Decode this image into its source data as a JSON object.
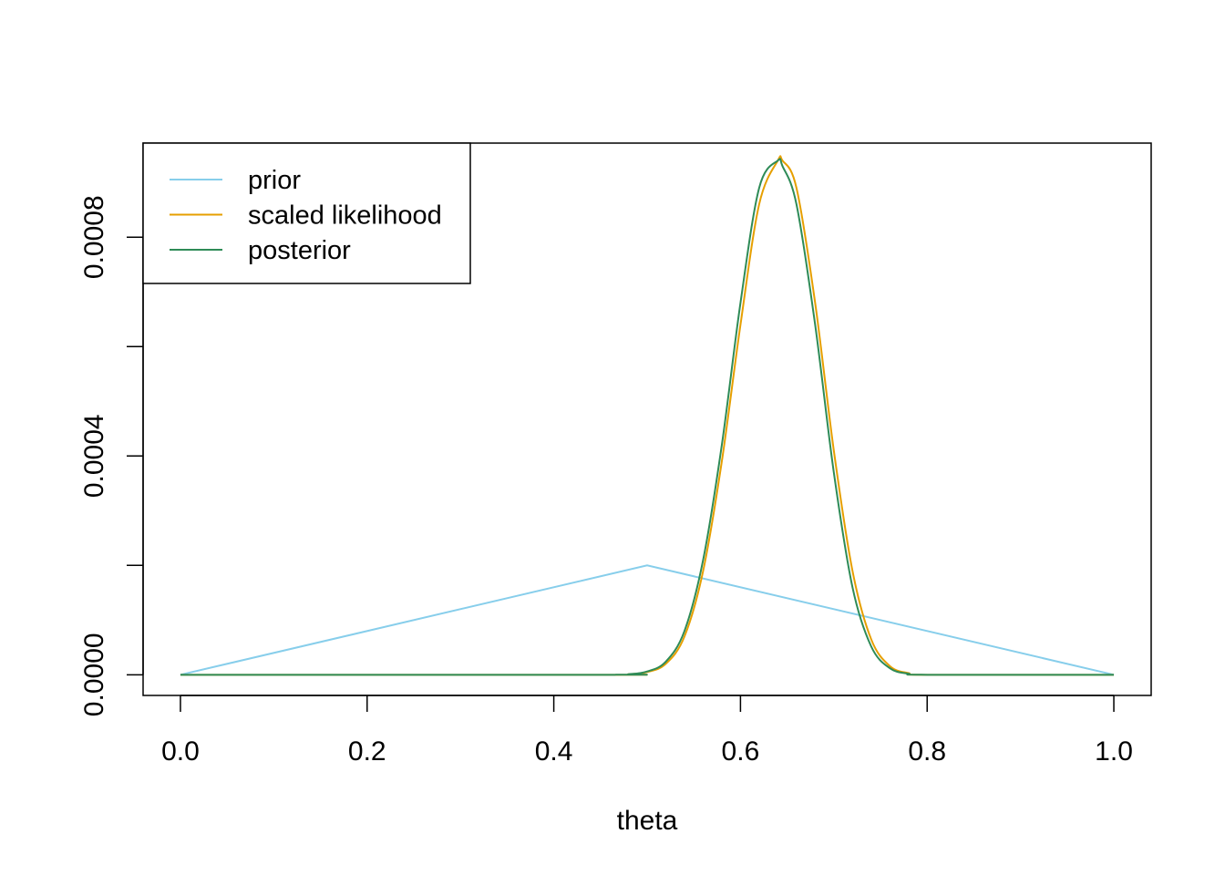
{
  "chart_data": {
    "type": "line",
    "xlabel": "theta",
    "ylabel": "",
    "xlim": [
      -0.04,
      1.04
    ],
    "ylim": [
      -3.78e-05,
      0.000972
    ],
    "x_ticks": [
      {
        "value": 0.0,
        "label": "0.0"
      },
      {
        "value": 0.2,
        "label": "0.2"
      },
      {
        "value": 0.4,
        "label": "0.4"
      },
      {
        "value": 0.6,
        "label": "0.6"
      },
      {
        "value": 0.8,
        "label": "0.8"
      },
      {
        "value": 1.0,
        "label": "1.0"
      }
    ],
    "y_ticks": [
      {
        "value": 0.0,
        "label": "0.0000"
      },
      {
        "value": 0.0002,
        "label": ""
      },
      {
        "value": 0.0004,
        "label": "0.0004"
      },
      {
        "value": 0.0006,
        "label": ""
      },
      {
        "value": 0.0008,
        "label": "0.0008"
      }
    ],
    "grid": false,
    "legend_position": "top-left",
    "series": [
      {
        "name": "prior",
        "color": "#87CEEB",
        "x": [
          0.0,
          0.5,
          1.0
        ],
        "y": [
          0.0,
          0.0002,
          0.0
        ]
      },
      {
        "name": "scaled likelihood",
        "color": "#E69F00",
        "x": [
          0.0,
          0.46,
          0.48,
          0.5,
          0.52,
          0.54,
          0.56,
          0.58,
          0.6,
          0.62,
          0.64,
          0.645,
          0.66,
          0.68,
          0.7,
          0.72,
          0.74,
          0.76,
          0.78,
          0.8,
          1.0
        ],
        "y": [
          0.0,
          0.0,
          1e-06,
          5e-06,
          2e-05,
          7e-05,
          0.00019,
          0.00039,
          0.00064,
          0.00086,
          0.00094,
          0.00094,
          0.00089,
          0.00068,
          0.00041,
          0.00019,
          6.5e-05,
          1.6e-05,
          3e-06,
          0.0,
          0.0
        ]
      },
      {
        "name": "posterior",
        "color": "#2E8B57",
        "x": [
          0.0,
          0.46,
          0.48,
          0.5,
          0.52,
          0.54,
          0.56,
          0.58,
          0.6,
          0.62,
          0.64,
          0.645,
          0.66,
          0.68,
          0.7,
          0.72,
          0.74,
          0.76,
          0.78,
          0.8,
          1.0
        ],
        "y": [
          0.0,
          0.0,
          1e-06,
          6e-06,
          2.4e-05,
          8e-05,
          0.00021,
          0.00042,
          0.00068,
          0.00089,
          0.00094,
          0.00093,
          0.00086,
          0.00064,
          0.00037,
          0.00016,
          5.2e-05,
          1.2e-05,
          2e-06,
          0.0,
          0.0
        ]
      }
    ]
  }
}
